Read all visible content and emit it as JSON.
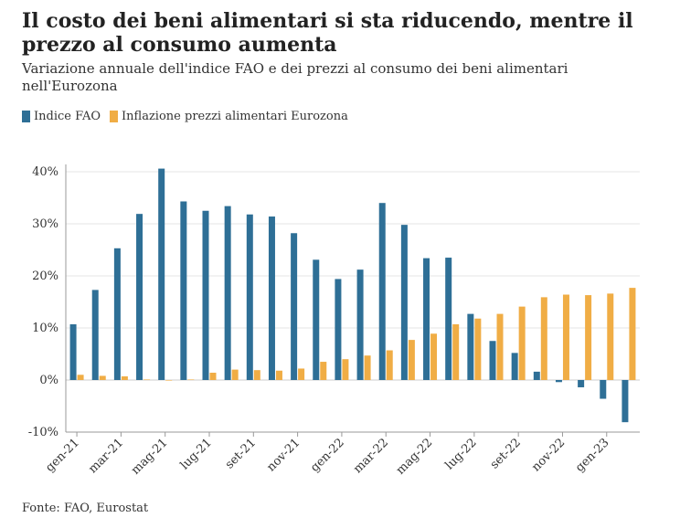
{
  "header": {
    "title": "Il costo dei beni alimentari si sta riducendo, mentre il prezzo al consumo aumenta",
    "subtitle": "Variazione annuale dell'indice FAO e dei prezzi al consumo dei beni alimentari nell'Eurozona"
  },
  "legend": {
    "items": [
      {
        "label": "Indice FAO",
        "color": "#2e6f96"
      },
      {
        "label": "Inflazione prezzi alimentari Eurozona",
        "color": "#f0ad45"
      }
    ]
  },
  "footer": {
    "source": "Fonte: FAO, Eurostat"
  },
  "chart_data": {
    "type": "bar",
    "categories": [
      "gen-21",
      "feb-21",
      "mar-21",
      "apr-21",
      "mag-21",
      "giu-21",
      "lug-21",
      "ago-21",
      "set-21",
      "ott-21",
      "nov-21",
      "dic-21",
      "gen-22",
      "feb-22",
      "mar-22",
      "apr-22",
      "mag-22",
      "giu-22",
      "lug-22",
      "ago-22",
      "set-22",
      "ott-22",
      "nov-22",
      "dic-22",
      "gen-23",
      "feb-23"
    ],
    "x_tick_labels": [
      "gen-21",
      "mar-21",
      "mag-21",
      "lug-21",
      "set-21",
      "nov-21",
      "gen-22",
      "mar-22",
      "mag-22",
      "lug-22",
      "set-22",
      "nov-22",
      "gen-23"
    ],
    "series": [
      {
        "name": "Indice FAO",
        "color": "#2e6f96",
        "values": [
          10.7,
          17.3,
          25.3,
          31.9,
          40.6,
          34.3,
          32.5,
          33.4,
          31.8,
          31.4,
          28.2,
          23.1,
          19.4,
          21.2,
          34.0,
          29.8,
          23.4,
          23.5,
          12.7,
          7.5,
          5.2,
          1.6,
          -0.4,
          -1.4,
          -3.6,
          -8.1
        ]
      },
      {
        "name": "Inflazione prezzi alimentari Eurozona",
        "color": "#f0ad45",
        "values": [
          1.0,
          0.8,
          0.7,
          0.1,
          0.0,
          0.1,
          1.4,
          2.0,
          1.9,
          1.8,
          2.2,
          3.5,
          4.0,
          4.7,
          5.7,
          7.7,
          8.9,
          10.7,
          11.8,
          12.7,
          14.1,
          15.9,
          16.4,
          16.3,
          16.6,
          17.7
        ]
      }
    ],
    "ylim": [
      -10,
      40
    ],
    "y_ticks": [
      -10,
      0,
      10,
      20,
      30,
      40
    ],
    "y_tick_suffix": "%",
    "grid": true,
    "legend_position": "top-left"
  }
}
